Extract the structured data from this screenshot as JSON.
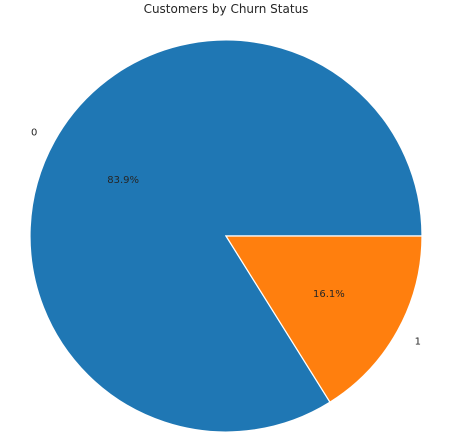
{
  "chart_data": {
    "type": "pie",
    "title": "Customers by Churn Status",
    "categories": [
      "0",
      "1"
    ],
    "values": [
      83.9,
      16.1
    ],
    "value_labels": [
      "83.9%",
      "16.1%"
    ],
    "colors": [
      "#1f77b4",
      "#ff7f0e"
    ],
    "start_angle_deg": 0,
    "direction": "counterclockwise",
    "legend": "none"
  }
}
